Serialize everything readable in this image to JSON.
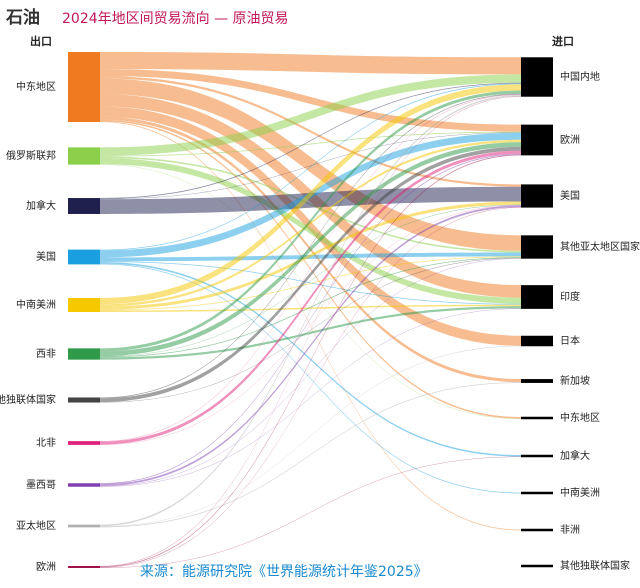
{
  "chart_data": {
    "type": "sankey",
    "title": "石油",
    "subtitle": "2024年地区间贸易流向 — 原油贸易",
    "source_label": "出口",
    "target_label": "进口",
    "note": "来源：能源研究院《世界能源统计年鉴2025》",
    "sources": [
      {
        "name": "中东地区",
        "color": "#f07a20"
      },
      {
        "name": "俄罗斯联邦",
        "color": "#8ccf4a"
      },
      {
        "name": "加拿大",
        "color": "#20204f"
      },
      {
        "name": "美国",
        "color": "#1aa0e0"
      },
      {
        "name": "中南美洲",
        "color": "#f5c800"
      },
      {
        "name": "西非",
        "color": "#2e9a4a"
      },
      {
        "name": "其他独联体国家",
        "color": "#444444"
      },
      {
        "name": "北非",
        "color": "#e0207a"
      },
      {
        "name": "墨西哥",
        "color": "#8040b0"
      },
      {
        "name": "亚太地区",
        "color": "#b0b0b0"
      },
      {
        "name": "欧洲",
        "color": "#a0104a"
      }
    ],
    "targets": [
      "中国内地",
      "欧洲",
      "美国",
      "其他亚太地区国家",
      "印度",
      "日本",
      "新加坡",
      "中东地区",
      "加拿大",
      "中南美洲",
      "非洲",
      "其他独联体国家"
    ],
    "target_color": "#000000",
    "links": [
      {
        "source": "中东地区",
        "target": "中国内地",
        "value": 220
      },
      {
        "source": "中东地区",
        "target": "欧洲",
        "value": 90
      },
      {
        "source": "中东地区",
        "target": "美国",
        "value": 30
      },
      {
        "source": "中东地区",
        "target": "其他亚太地区国家",
        "value": 200
      },
      {
        "source": "中东地区",
        "target": "印度",
        "value": 160
      },
      {
        "source": "中东地区",
        "target": "日本",
        "value": 130
      },
      {
        "source": "中东地区",
        "target": "新加坡",
        "value": 40
      },
      {
        "source": "中东地区",
        "target": "中东地区",
        "value": 20
      },
      {
        "source": "中东地区",
        "target": "非洲",
        "value": 10
      },
      {
        "source": "俄罗斯联邦",
        "target": "中国内地",
        "value": 107
      },
      {
        "source": "俄罗斯联邦",
        "target": "欧洲",
        "value": 10
      },
      {
        "source": "俄罗斯联邦",
        "target": "其他亚太地区国家",
        "value": 20
      },
      {
        "source": "俄罗斯联邦",
        "target": "印度",
        "value": 80
      },
      {
        "source": "俄罗斯联邦",
        "target": "中东地区",
        "value": 5
      },
      {
        "source": "加拿大",
        "target": "中国内地",
        "value": 10
      },
      {
        "source": "加拿大",
        "target": "欧洲",
        "value": 5
      },
      {
        "source": "加拿大",
        "target": "美国",
        "value": 190
      },
      {
        "source": "美国",
        "target": "中国内地",
        "value": 10
      },
      {
        "source": "美国",
        "target": "欧洲",
        "value": 90
      },
      {
        "source": "美国",
        "target": "其他亚太地区国家",
        "value": 50
      },
      {
        "source": "美国",
        "target": "印度",
        "value": 10
      },
      {
        "source": "美国",
        "target": "加拿大",
        "value": 20
      },
      {
        "source": "美国",
        "target": "中南美洲",
        "value": 10
      },
      {
        "source": "中南美洲",
        "target": "中国内地",
        "value": 80
      },
      {
        "source": "中南美洲",
        "target": "欧洲",
        "value": 30
      },
      {
        "source": "中南美洲",
        "target": "美国",
        "value": 40
      },
      {
        "source": "中南美洲",
        "target": "其他亚太地区国家",
        "value": 10
      },
      {
        "source": "中南美洲",
        "target": "印度",
        "value": 20
      },
      {
        "source": "西非",
        "target": "中国内地",
        "value": 40
      },
      {
        "source": "西非",
        "target": "欧洲",
        "value": 60
      },
      {
        "source": "西非",
        "target": "美国",
        "value": 5
      },
      {
        "source": "西非",
        "target": "其他亚太地区国家",
        "value": 10
      },
      {
        "source": "西非",
        "target": "印度",
        "value": 30
      },
      {
        "source": "其他独联体国家",
        "target": "中国内地",
        "value": 10
      },
      {
        "source": "其他独联体国家",
        "target": "欧洲",
        "value": 50
      },
      {
        "source": "其他独联体国家",
        "target": "其他亚太地区国家",
        "value": 5
      },
      {
        "source": "北非",
        "target": "中国内地",
        "value": 5
      },
      {
        "source": "北非",
        "target": "欧洲",
        "value": 40
      },
      {
        "source": "北非",
        "target": "美国",
        "value": 3
      },
      {
        "source": "墨西哥",
        "target": "欧洲",
        "value": 10
      },
      {
        "source": "墨西哥",
        "target": "美国",
        "value": 25
      },
      {
        "source": "墨西哥",
        "target": "其他亚太地区国家",
        "value": 5
      },
      {
        "source": "墨西哥",
        "target": "印度",
        "value": 5
      },
      {
        "source": "亚太地区",
        "target": "中国内地",
        "value": 20
      },
      {
        "source": "亚太地区",
        "target": "日本",
        "value": 5
      },
      {
        "source": "亚太地区",
        "target": "新加坡",
        "value": 10
      },
      {
        "source": "欧洲",
        "target": "中国内地",
        "value": 5
      },
      {
        "source": "欧洲",
        "target": "欧洲",
        "value": 10
      },
      {
        "source": "欧洲",
        "target": "美国",
        "value": 5
      },
      {
        "source": "欧洲",
        "target": "加拿大",
        "value": 5
      }
    ]
  }
}
